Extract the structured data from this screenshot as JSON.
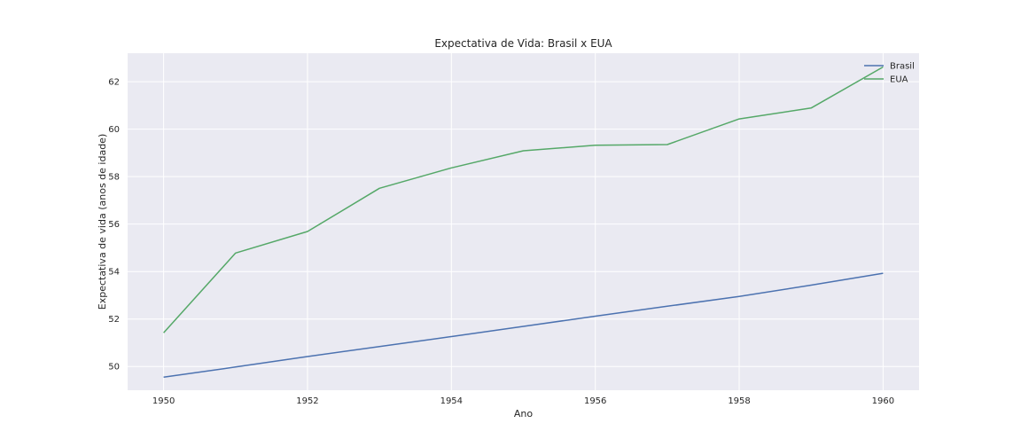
{
  "chart_data": {
    "type": "line",
    "title": "Expectativa de Vida: Brasil x EUA",
    "xlabel": "Ano",
    "ylabel": "Expectativa de vida (anos de idade)",
    "x": [
      1950,
      1951,
      1952,
      1953,
      1954,
      1955,
      1956,
      1957,
      1958,
      1959,
      1960
    ],
    "xlim": [
      1949.5,
      1960.5
    ],
    "ylim": [
      49.0,
      63.2
    ],
    "xticks": [
      "1950",
      "1952",
      "1954",
      "1956",
      "1958",
      "1960"
    ],
    "yticks": [
      "50",
      "52",
      "54",
      "56",
      "58",
      "60",
      "62"
    ],
    "grid": true,
    "legend_position": "top-right",
    "background_color": "#eaeaf2",
    "series": [
      {
        "name": "Brasil",
        "color": "#4c72b0",
        "values": [
          49.55,
          49.98,
          50.42,
          50.84,
          51.26,
          51.69,
          52.12,
          52.54,
          52.95,
          53.43,
          53.93
        ]
      },
      {
        "name": "EUA",
        "color": "#55a868",
        "values": [
          51.42,
          54.78,
          55.69,
          57.51,
          58.37,
          59.09,
          59.32,
          59.35,
          60.43,
          60.89,
          62.62
        ]
      }
    ]
  }
}
